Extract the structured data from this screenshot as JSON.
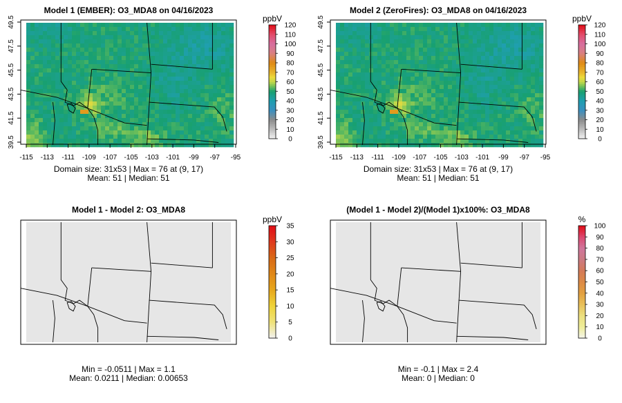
{
  "chart_data": [
    {
      "type": "heatmap",
      "title": "Model 1 (EMBER): O3_MDA8 on 04/16/2023",
      "xticks": [
        "-115",
        "-113",
        "-111",
        "-109",
        "-107",
        "-105",
        "-103",
        "-101",
        "-99",
        "-97",
        "-95"
      ],
      "yticks": [
        "39.5",
        "41.5",
        "43.5",
        "45.5",
        "47.5",
        "49.5"
      ],
      "xlim": [
        -115,
        -95
      ],
      "ylim": [
        39.5,
        49.5
      ],
      "legend_title": "ppbV",
      "legend_ticks": [
        "0",
        "10",
        "20",
        "30",
        "40",
        "50",
        "60",
        "70",
        "80",
        "90",
        "100",
        "110",
        "120"
      ],
      "legend_range": [
        0,
        120
      ],
      "palette": "ozone",
      "domain_cols": 53,
      "domain_rows": 31,
      "max_value": 76,
      "summary_lines": [
        "Domain size: 31x53 | Max = 76 at (9, 17)",
        "Mean: 51 |  Median: 51"
      ]
    },
    {
      "type": "heatmap",
      "title": "Model 2 (ZeroFires): O3_MDA8 on 04/16/2023",
      "xticks": [
        "-115",
        "-113",
        "-111",
        "-109",
        "-107",
        "-105",
        "-103",
        "-101",
        "-99",
        "-97",
        "-95"
      ],
      "yticks": [
        "39.5",
        "41.5",
        "43.5",
        "45.5",
        "47.5",
        "49.5"
      ],
      "xlim": [
        -115,
        -95
      ],
      "ylim": [
        39.5,
        49.5
      ],
      "legend_title": "ppbV",
      "legend_ticks": [
        "0",
        "10",
        "20",
        "30",
        "40",
        "50",
        "60",
        "70",
        "80",
        "90",
        "100",
        "110",
        "120"
      ],
      "legend_range": [
        0,
        120
      ],
      "palette": "ozone",
      "domain_cols": 53,
      "domain_rows": 31,
      "max_value": 76,
      "summary_lines": [
        "Domain size: 31x53 | Max = 76 at (9, 17)",
        "Mean: 51 |  Median: 51"
      ]
    },
    {
      "type": "heatmap",
      "title": "Model 1 - Model 2: O3_MDA8",
      "legend_title": "ppbV",
      "legend_ticks": [
        "0",
        "5",
        "10",
        "15",
        "20",
        "25",
        "30",
        "35"
      ],
      "legend_range": [
        0,
        35
      ],
      "palette": "diff",
      "fill": "#e6e6e6",
      "summary_lines": [
        "Min = -0.0511 | Max = 1.1",
        "Mean: 0.0211 |  Median: 0.00653"
      ]
    },
    {
      "type": "heatmap",
      "title": "(Model 1 - Model 2)/(Model 1)x100%: O3_MDA8",
      "legend_title": "%",
      "legend_ticks": [
        "0",
        "10",
        "20",
        "30",
        "40",
        "50",
        "60",
        "70",
        "80",
        "90",
        "100"
      ],
      "legend_range": [
        0,
        100
      ],
      "palette": "pct",
      "fill": "#e6e6e6",
      "summary_lines": [
        "Min = -0.1 | Max = 2.4",
        "Mean: 0 |  Median: 0"
      ]
    }
  ],
  "colors": {
    "ozone_stops": [
      [
        0,
        "#f2f2f2"
      ],
      [
        10,
        "#bdbdbd"
      ],
      [
        20,
        "#8c8c8c"
      ],
      [
        30,
        "#3a8fc0"
      ],
      [
        40,
        "#1f9fb0"
      ],
      [
        50,
        "#18a070"
      ],
      [
        55,
        "#6dbf5a"
      ],
      [
        60,
        "#c2d84a"
      ],
      [
        65,
        "#ecd93a"
      ],
      [
        70,
        "#e8b52e"
      ],
      [
        80,
        "#df8a14"
      ],
      [
        90,
        "#d98080"
      ],
      [
        100,
        "#d66ea0"
      ],
      [
        110,
        "#e24c6a"
      ],
      [
        120,
        "#e00d17"
      ]
    ],
    "diff_stops": [
      [
        0,
        "#f2f2f2"
      ],
      [
        5,
        "#efe27a"
      ],
      [
        10,
        "#efd43a"
      ],
      [
        15,
        "#e8a81c"
      ],
      [
        20,
        "#e08818"
      ],
      [
        25,
        "#d96a16"
      ],
      [
        30,
        "#e03a1e"
      ],
      [
        35,
        "#e00d17"
      ]
    ],
    "pct_stops": [
      [
        0,
        "#f5f5ed"
      ],
      [
        10,
        "#eeed9a"
      ],
      [
        20,
        "#ece080"
      ],
      [
        30,
        "#e8c05a"
      ],
      [
        40,
        "#e3a040"
      ],
      [
        50,
        "#dc8a46"
      ],
      [
        60,
        "#d47a58"
      ],
      [
        70,
        "#cc7a82"
      ],
      [
        80,
        "#d0769c"
      ],
      [
        90,
        "#dc4870"
      ],
      [
        100,
        "#e00d17"
      ]
    ]
  }
}
